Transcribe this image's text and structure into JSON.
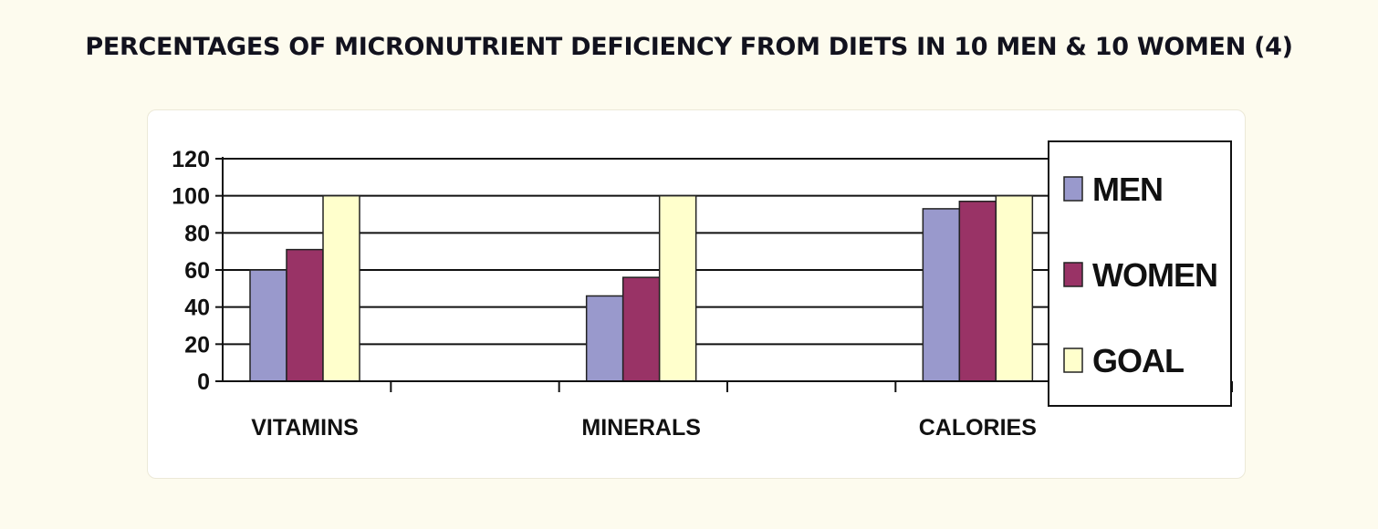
{
  "title": "PERCENTAGES OF MICRONUTRIENT DEFICIENCY FROM DIETS IN 10 MEN & 10 WOMEN (4)",
  "chart_data": {
    "type": "bar",
    "categories": [
      "VITAMINS",
      "MINERALS",
      "CALORIES"
    ],
    "series": [
      {
        "name": "MEN",
        "color": "#9999cc",
        "values": [
          60,
          46,
          93
        ]
      },
      {
        "name": "WOMEN",
        "color": "#993366",
        "values": [
          71,
          56,
          97
        ]
      },
      {
        "name": "GOAL",
        "color": "#ffffcc",
        "values": [
          100,
          100,
          100
        ]
      }
    ],
    "y_ticks": [
      "0",
      "20",
      "40",
      "60",
      "80",
      "100",
      "120"
    ],
    "ylim": [
      0,
      120
    ],
    "grid": true,
    "legend_position": "right"
  }
}
